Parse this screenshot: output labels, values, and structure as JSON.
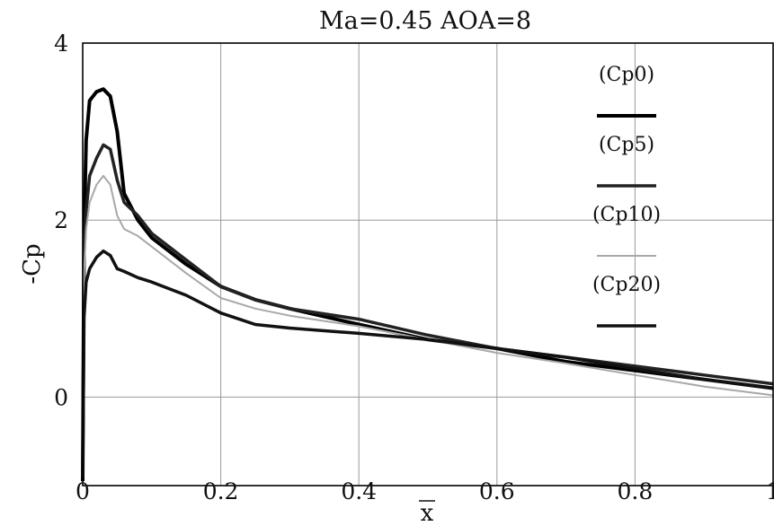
{
  "chart_data": {
    "type": "line",
    "title": "Ma=0.45 AOA=8",
    "xlabel": "x",
    "ylabel": "-Cp",
    "xlim": [
      0,
      1
    ],
    "ylim": [
      -1,
      4
    ],
    "x_ticks": [
      "0",
      "0.2",
      "0.4",
      "0.6",
      "0.8",
      "1"
    ],
    "y_ticks": [
      "0",
      "2",
      "4"
    ],
    "grid": true,
    "legend_position": "top-right",
    "series": [
      {
        "name": "(Cp0)",
        "color": "#000000",
        "width": 4,
        "x": [
          0,
          0.002,
          0.005,
          0.01,
          0.02,
          0.03,
          0.04,
          0.05,
          0.06,
          0.08,
          0.1,
          0.15,
          0.2,
          0.25,
          0.3,
          0.4,
          0.5,
          0.6,
          0.7,
          0.8,
          0.9,
          1.0
        ],
        "y": [
          -0.95,
          1.8,
          2.9,
          3.35,
          3.45,
          3.48,
          3.4,
          3.0,
          2.3,
          2.0,
          1.8,
          1.5,
          1.25,
          1.1,
          1.0,
          0.82,
          0.65,
          0.55,
          0.4,
          0.3,
          0.2,
          0.1
        ]
      },
      {
        "name": "(Cp5)",
        "color": "#222222",
        "width": 3.5,
        "x": [
          0,
          0.002,
          0.005,
          0.01,
          0.02,
          0.03,
          0.04,
          0.05,
          0.06,
          0.08,
          0.1,
          0.15,
          0.2,
          0.25,
          0.3,
          0.4,
          0.5,
          0.6,
          0.7,
          0.8,
          0.9,
          1.0
        ],
        "y": [
          -0.9,
          1.6,
          2.1,
          2.5,
          2.7,
          2.85,
          2.8,
          2.45,
          2.2,
          2.05,
          1.85,
          1.55,
          1.25,
          1.1,
          1.0,
          0.88,
          0.7,
          0.55,
          0.45,
          0.35,
          0.25,
          0.15
        ]
      },
      {
        "name": "(Cp10)",
        "color": "#a8a8a8",
        "width": 2,
        "x": [
          0,
          0.002,
          0.005,
          0.01,
          0.02,
          0.03,
          0.04,
          0.05,
          0.06,
          0.08,
          0.1,
          0.15,
          0.2,
          0.25,
          0.3,
          0.4,
          0.5,
          0.6,
          0.7,
          0.8,
          0.9,
          1.0
        ],
        "y": [
          -0.9,
          1.4,
          1.9,
          2.2,
          2.4,
          2.5,
          2.4,
          2.05,
          1.9,
          1.82,
          1.7,
          1.4,
          1.12,
          1.0,
          0.92,
          0.8,
          0.65,
          0.5,
          0.38,
          0.25,
          0.12,
          0.02
        ]
      },
      {
        "name": "(Cp20)",
        "color": "#111111",
        "width": 3.5,
        "x": [
          0,
          0.002,
          0.005,
          0.01,
          0.02,
          0.03,
          0.04,
          0.05,
          0.06,
          0.08,
          0.1,
          0.15,
          0.2,
          0.25,
          0.3,
          0.4,
          0.5,
          0.6,
          0.7,
          0.8,
          0.9,
          1.0
        ],
        "y": [
          -0.9,
          0.9,
          1.3,
          1.45,
          1.58,
          1.65,
          1.6,
          1.45,
          1.42,
          1.35,
          1.3,
          1.15,
          0.95,
          0.82,
          0.78,
          0.72,
          0.65,
          0.55,
          0.45,
          0.32,
          0.2,
          0.1
        ]
      }
    ]
  }
}
